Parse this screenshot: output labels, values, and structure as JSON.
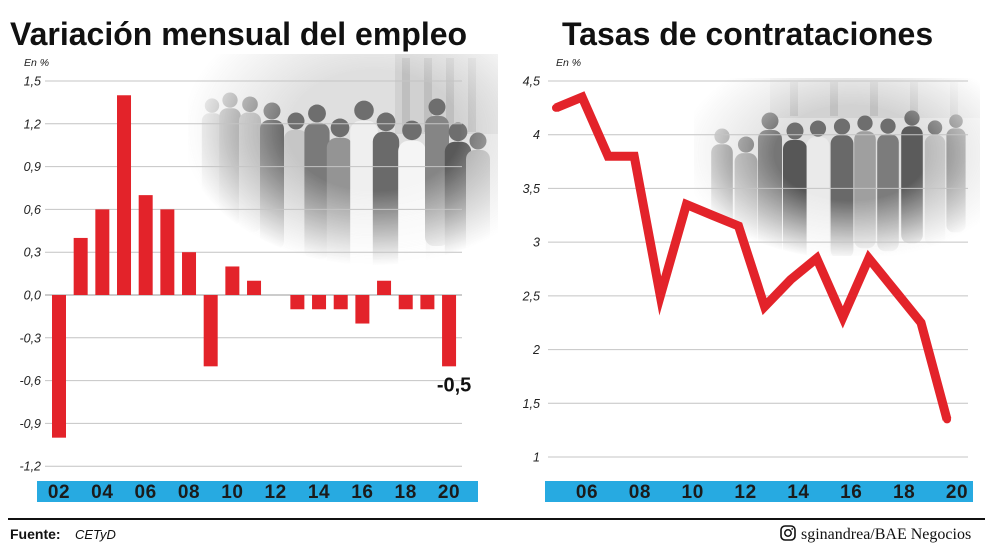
{
  "colors": {
    "bar": "#e3232a",
    "line": "#e3232a",
    "axis_band": "#27aae1",
    "grid": "#c4c4c4"
  },
  "chart_data": [
    {
      "type": "bar",
      "title": "Variación mensual del empleo",
      "ylabel": "En %",
      "xlabel": "",
      "x": [
        2,
        3,
        4,
        5,
        6,
        7,
        8,
        9,
        10,
        11,
        12,
        13,
        14,
        15,
        16,
        17,
        18,
        19,
        20
      ],
      "values": [
        -1.0,
        0.4,
        0.6,
        1.4,
        0.7,
        0.6,
        0.3,
        -0.5,
        0.2,
        0.1,
        0.0,
        -0.1,
        -0.1,
        -0.1,
        -0.2,
        0.1,
        -0.1,
        -0.1,
        -0.5
      ],
      "x_tick_labels": [
        "02",
        "04",
        "06",
        "08",
        "10",
        "12",
        "14",
        "16",
        "18",
        "20"
      ],
      "y_ticks": [
        1.5,
        1.2,
        0.9,
        0.6,
        0.3,
        0.0,
        -0.3,
        -0.6,
        -0.9,
        -1.2
      ],
      "y_tick_labels": [
        "1,5",
        "1,2",
        "0,9",
        "0,6",
        "0,3",
        "0,0",
        "-0,3",
        "-0,6",
        "-0,9",
        "-1,2"
      ],
      "ylim": [
        -1.2,
        1.5
      ],
      "grid": true,
      "annotations": [
        {
          "x": 20,
          "text": "-0,5"
        }
      ]
    },
    {
      "type": "line",
      "title": "Tasas de contrataciones",
      "ylabel": "En %",
      "xlabel": "",
      "x": [
        5,
        6,
        7,
        8,
        9,
        10,
        11,
        12,
        13,
        14,
        15,
        16,
        17,
        18,
        19,
        20
      ],
      "values": [
        4.25,
        4.35,
        3.8,
        3.8,
        2.5,
        3.35,
        3.25,
        3.15,
        2.4,
        2.65,
        2.85,
        2.3,
        2.85,
        2.55,
        2.25,
        1.35
      ],
      "x_tick_labels": [
        "06",
        "08",
        "10",
        "12",
        "14",
        "16",
        "18",
        "20"
      ],
      "y_ticks": [
        4.5,
        4,
        3.5,
        3,
        2.5,
        2,
        1.5,
        1
      ],
      "y_tick_labels": [
        "4,5",
        "4",
        "3,5",
        "3",
        "2,5",
        "2",
        "1,5",
        "1"
      ],
      "ylim": [
        1,
        4.5
      ],
      "grid": true
    }
  ],
  "footer": {
    "source_label": "Fuente:",
    "source": "CETyD",
    "credit": "sginandrea/BAE Negocios"
  }
}
